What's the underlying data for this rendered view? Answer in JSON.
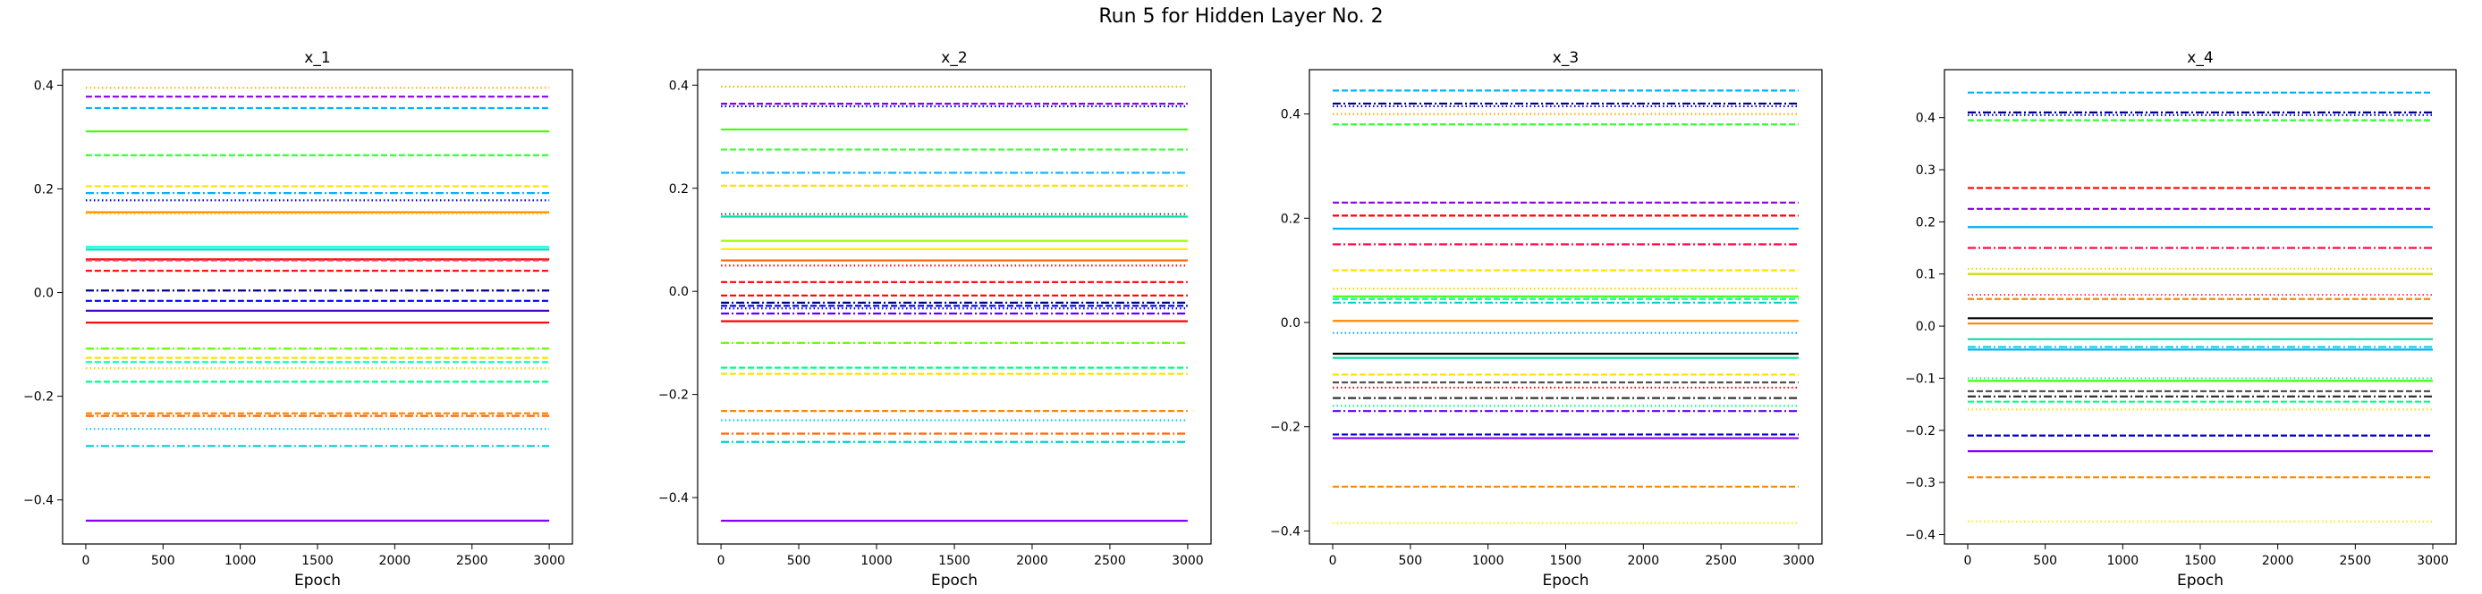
{
  "figure": {
    "suptitle": "Run 5 for Hidden Layer No. 2"
  },
  "chart_data": [
    {
      "type": "line",
      "title": "x_1",
      "xlabel": "Epoch",
      "ylabel": "",
      "xlim": [
        -150,
        3150
      ],
      "ylim": [
        -0.485,
        0.43
      ],
      "xticks": [
        0,
        500,
        1000,
        1500,
        2000,
        2500,
        3000
      ],
      "yticks": [
        -0.4,
        -0.2,
        0.0,
        0.2,
        0.4
      ],
      "ytick_labels": [
        "−0.4",
        "−0.2",
        "0.0",
        "0.2",
        "0.4"
      ],
      "x_range": [
        0,
        3000
      ],
      "grid": false,
      "legend": "none",
      "series": [
        {
          "value": 0.395,
          "color": "#ffb000",
          "style": "dotted"
        },
        {
          "value": 0.378,
          "color": "#8a00e0",
          "style": "dashed"
        },
        {
          "value": 0.356,
          "color": "#00b2ff",
          "style": "dashed"
        },
        {
          "value": 0.311,
          "color": "#44ff00",
          "style": "solid"
        },
        {
          "value": 0.265,
          "color": "#33ff33",
          "style": "dashed"
        },
        {
          "value": 0.205,
          "color": "#ffe000",
          "style": "dashed"
        },
        {
          "value": 0.192,
          "color": "#00b2ff",
          "style": "dashdot"
        },
        {
          "value": 0.178,
          "color": "#0000cc",
          "style": "dotted"
        },
        {
          "value": 0.155,
          "color": "#ff8800",
          "style": "solid"
        },
        {
          "value": 0.152,
          "color": "#ffd000",
          "style": "dotted"
        },
        {
          "value": 0.088,
          "color": "#00ffe0",
          "style": "solid"
        },
        {
          "value": 0.083,
          "color": "#00e0c0",
          "style": "solid"
        },
        {
          "value": 0.064,
          "color": "#ff0000",
          "style": "solid"
        },
        {
          "value": 0.062,
          "color": "#ff4060",
          "style": "dashed"
        },
        {
          "value": 0.042,
          "color": "#ff0000",
          "style": "dashed"
        },
        {
          "value": 0.004,
          "color": "#000088",
          "style": "dashdot"
        },
        {
          "value": -0.016,
          "color": "#0000ff",
          "style": "dashed"
        },
        {
          "value": -0.035,
          "color": "#5000cc",
          "style": "solid"
        },
        {
          "value": -0.058,
          "color": "#ff0000",
          "style": "solid"
        },
        {
          "value": -0.108,
          "color": "#66ff00",
          "style": "dashdot"
        },
        {
          "value": -0.126,
          "color": "#ffe000",
          "style": "dashed"
        },
        {
          "value": -0.134,
          "color": "#00ffaa",
          "style": "dashed"
        },
        {
          "value": -0.146,
          "color": "#ffd000",
          "style": "dotted"
        },
        {
          "value": -0.172,
          "color": "#00ff88",
          "style": "dashed"
        },
        {
          "value": -0.233,
          "color": "#ff8800",
          "style": "dashed"
        },
        {
          "value": -0.238,
          "color": "#ff6600",
          "style": "dashdot"
        },
        {
          "value": -0.263,
          "color": "#00c8ff",
          "style": "dotted"
        },
        {
          "value": -0.296,
          "color": "#00d0d0",
          "style": "dashdot"
        },
        {
          "value": -0.44,
          "color": "#8a00ff",
          "style": "solid"
        }
      ]
    },
    {
      "type": "line",
      "title": "x_2",
      "xlabel": "Epoch",
      "ylabel": "",
      "xlim": [
        -150,
        3150
      ],
      "ylim": [
        -0.49,
        0.43
      ],
      "xticks": [
        0,
        500,
        1000,
        1500,
        2000,
        2500,
        3000
      ],
      "yticks": [
        -0.4,
        -0.2,
        0.0,
        0.2,
        0.4
      ],
      "ytick_labels": [
        "−0.4",
        "−0.2",
        "0.0",
        "0.2",
        "0.4"
      ],
      "x_range": [
        0,
        3000
      ],
      "grid": false,
      "legend": "none",
      "series": [
        {
          "value": 0.397,
          "color": "#ffb000",
          "style": "dotted"
        },
        {
          "value": 0.364,
          "color": "#8a00e0",
          "style": "dashed"
        },
        {
          "value": 0.359,
          "color": "#0000cc",
          "style": "dotted"
        },
        {
          "value": 0.314,
          "color": "#44ff00",
          "style": "solid"
        },
        {
          "value": 0.275,
          "color": "#33ff33",
          "style": "dashed"
        },
        {
          "value": 0.23,
          "color": "#00b2ff",
          "style": "dashdot"
        },
        {
          "value": 0.205,
          "color": "#ffe000",
          "style": "dashed"
        },
        {
          "value": 0.15,
          "color": "#555555",
          "style": "dotted"
        },
        {
          "value": 0.145,
          "color": "#00e0a0",
          "style": "solid"
        },
        {
          "value": 0.098,
          "color": "#99ff00",
          "style": "solid"
        },
        {
          "value": 0.082,
          "color": "#ffee00",
          "style": "solid"
        },
        {
          "value": 0.06,
          "color": "#ff6000",
          "style": "solid"
        },
        {
          "value": 0.05,
          "color": "#ff0000",
          "style": "dotted"
        },
        {
          "value": 0.018,
          "color": "#ff0000",
          "style": "dashed"
        },
        {
          "value": -0.008,
          "color": "#ff0000",
          "style": "dashed"
        },
        {
          "value": -0.022,
          "color": "#000088",
          "style": "dashdot"
        },
        {
          "value": -0.028,
          "color": "#0000ff",
          "style": "dashed"
        },
        {
          "value": -0.033,
          "color": "#0000cc",
          "style": "dotted"
        },
        {
          "value": -0.043,
          "color": "#6000ff",
          "style": "dashdot"
        },
        {
          "value": -0.058,
          "color": "#ff0000",
          "style": "solid"
        },
        {
          "value": -0.1,
          "color": "#66ff00",
          "style": "dashdot"
        },
        {
          "value": -0.148,
          "color": "#00ff88",
          "style": "dashed"
        },
        {
          "value": -0.16,
          "color": "#ffe000",
          "style": "dashed"
        },
        {
          "value": -0.232,
          "color": "#ff8800",
          "style": "dashed"
        },
        {
          "value": -0.25,
          "color": "#00c8ff",
          "style": "dotted"
        },
        {
          "value": -0.276,
          "color": "#ff6600",
          "style": "dashdot"
        },
        {
          "value": -0.292,
          "color": "#00d0d0",
          "style": "dashdot"
        },
        {
          "value": -0.445,
          "color": "#8a00ff",
          "style": "solid"
        }
      ]
    },
    {
      "type": "line",
      "title": "x_3",
      "xlabel": "Epoch",
      "ylabel": "",
      "xlim": [
        -150,
        3150
      ],
      "ylim": [
        -0.425,
        0.485
      ],
      "xticks": [
        0,
        500,
        1000,
        1500,
        2000,
        2500,
        3000
      ],
      "yticks": [
        -0.4,
        -0.2,
        0.0,
        0.2,
        0.4
      ],
      "ytick_labels": [
        "−0.4",
        "−0.2",
        "0.0",
        "0.2",
        "0.4"
      ],
      "x_range": [
        0,
        3000
      ],
      "grid": false,
      "legend": "none",
      "series": [
        {
          "value": 0.445,
          "color": "#00b2ff",
          "style": "dashed"
        },
        {
          "value": 0.42,
          "color": "#000088",
          "style": "dashdot"
        },
        {
          "value": 0.415,
          "color": "#0000cc",
          "style": "dotted"
        },
        {
          "value": 0.4,
          "color": "#ffb000",
          "style": "dotted"
        },
        {
          "value": 0.38,
          "color": "#33ff33",
          "style": "dashed"
        },
        {
          "value": 0.23,
          "color": "#8a00e0",
          "style": "dashed"
        },
        {
          "value": 0.205,
          "color": "#ff0000",
          "style": "dashed"
        },
        {
          "value": 0.18,
          "color": "#00b2ff",
          "style": "solid"
        },
        {
          "value": 0.15,
          "color": "#ff0040",
          "style": "dashdot"
        },
        {
          "value": 0.1,
          "color": "#ffe000",
          "style": "dashed"
        },
        {
          "value": 0.065,
          "color": "#ffd000",
          "style": "dotted"
        },
        {
          "value": 0.05,
          "color": "#44ff00",
          "style": "solid"
        },
        {
          "value": 0.045,
          "color": "#00ffaa",
          "style": "dashed"
        },
        {
          "value": 0.038,
          "color": "#00d0d0",
          "style": "dashdot"
        },
        {
          "value": 0.003,
          "color": "#ff8800",
          "style": "solid"
        },
        {
          "value": -0.02,
          "color": "#00b2ff",
          "style": "dotted"
        },
        {
          "value": -0.06,
          "color": "#000000",
          "style": "solid"
        },
        {
          "value": -0.068,
          "color": "#00e0a0",
          "style": "solid"
        },
        {
          "value": -0.1,
          "color": "#ffe000",
          "style": "dashed"
        },
        {
          "value": -0.115,
          "color": "#555555",
          "style": "dashed"
        },
        {
          "value": -0.125,
          "color": "#ff0000",
          "style": "dotted"
        },
        {
          "value": -0.145,
          "color": "#333333",
          "style": "dashdot"
        },
        {
          "value": -0.16,
          "color": "#00ff88",
          "style": "dotted"
        },
        {
          "value": -0.17,
          "color": "#6000ff",
          "style": "dashdot"
        },
        {
          "value": -0.215,
          "color": "#0000cc",
          "style": "dashed"
        },
        {
          "value": -0.222,
          "color": "#8a00ff",
          "style": "solid"
        },
        {
          "value": -0.315,
          "color": "#ff8800",
          "style": "dashed"
        },
        {
          "value": -0.385,
          "color": "#ffee00",
          "style": "dotted"
        }
      ]
    },
    {
      "type": "line",
      "title": "x_4",
      "xlabel": "Epoch",
      "ylabel": "",
      "xlim": [
        -150,
        3150
      ],
      "ylim": [
        -0.418,
        0.492
      ],
      "xticks": [
        0,
        500,
        1000,
        1500,
        2000,
        2500,
        3000
      ],
      "yticks": [
        -0.4,
        -0.3,
        -0.2,
        -0.1,
        0.0,
        0.1,
        0.2,
        0.3,
        0.4
      ],
      "ytick_labels": [
        "−0.4",
        "−0.3",
        "−0.2",
        "−0.1",
        "0.0",
        "0.1",
        "0.2",
        "0.3",
        "0.4"
      ],
      "x_range": [
        0,
        3000
      ],
      "grid": false,
      "legend": "none",
      "series": [
        {
          "value": 0.448,
          "color": "#00b2ff",
          "style": "dashed"
        },
        {
          "value": 0.41,
          "color": "#000088",
          "style": "dashdot"
        },
        {
          "value": 0.405,
          "color": "#0000cc",
          "style": "dotted"
        },
        {
          "value": 0.395,
          "color": "#33ff33",
          "style": "dashed"
        },
        {
          "value": 0.265,
          "color": "#ff0000",
          "style": "dashed"
        },
        {
          "value": 0.225,
          "color": "#8a00e0",
          "style": "dashed"
        },
        {
          "value": 0.19,
          "color": "#00b2ff",
          "style": "solid"
        },
        {
          "value": 0.15,
          "color": "#ff0040",
          "style": "dashdot"
        },
        {
          "value": 0.11,
          "color": "#ffd000",
          "style": "dotted"
        },
        {
          "value": 0.1,
          "color": "#ccdd00",
          "style": "solid"
        },
        {
          "value": 0.06,
          "color": "#ff4060",
          "style": "dotted"
        },
        {
          "value": 0.052,
          "color": "#ff8800",
          "style": "dashed"
        },
        {
          "value": 0.015,
          "color": "#000000",
          "style": "solid"
        },
        {
          "value": 0.005,
          "color": "#ff8800",
          "style": "solid"
        },
        {
          "value": -0.025,
          "color": "#00e0a0",
          "style": "solid"
        },
        {
          "value": -0.04,
          "color": "#00d0d0",
          "style": "dashdot"
        },
        {
          "value": -0.045,
          "color": "#00b2ff",
          "style": "solid"
        },
        {
          "value": -0.1,
          "color": "#00ffaa",
          "style": "dotted"
        },
        {
          "value": -0.105,
          "color": "#44ff00",
          "style": "solid"
        },
        {
          "value": -0.125,
          "color": "#555555",
          "style": "dashed"
        },
        {
          "value": -0.135,
          "color": "#333333",
          "style": "dashdot"
        },
        {
          "value": -0.145,
          "color": "#00ff88",
          "style": "dashed"
        },
        {
          "value": -0.16,
          "color": "#ffe000",
          "style": "dotted"
        },
        {
          "value": -0.21,
          "color": "#0000cc",
          "style": "dashed"
        },
        {
          "value": -0.24,
          "color": "#8a00ff",
          "style": "solid"
        },
        {
          "value": -0.29,
          "color": "#ff8800",
          "style": "dashed"
        },
        {
          "value": -0.375,
          "color": "#ffee00",
          "style": "dotted"
        }
      ]
    }
  ]
}
